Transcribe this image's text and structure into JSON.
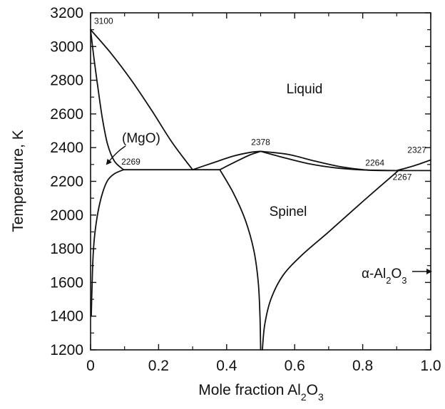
{
  "chart_data": {
    "type": "phase-diagram",
    "title": "",
    "xlabel": {
      "prefix": "Mole fraction Al",
      "sub": "2",
      "suffix": "O",
      "sub2": "3"
    },
    "ylabel": "Temperature, K",
    "xlim": [
      0,
      1.0
    ],
    "ylim": [
      1200,
      3200
    ],
    "xticks": [
      0,
      0.2,
      0.4,
      0.6,
      0.8,
      1.0
    ],
    "xtick_labels": [
      "0",
      "0.2",
      "0.4",
      "0.6",
      "0.8",
      "1.0"
    ],
    "yticks": [
      1200,
      1400,
      1600,
      1800,
      2000,
      2200,
      2400,
      2600,
      2800,
      3000,
      3200
    ],
    "ytick_labels": [
      "1200",
      "1400",
      "1600",
      "1800",
      "2000",
      "2200",
      "2400",
      "2600",
      "2800",
      "3000",
      "3200"
    ],
    "regions": {
      "liquid": "Liquid",
      "spinel": "Spinel",
      "mgo": "(MgO)",
      "alumina": {
        "prefix": "α-Al",
        "sub": "2",
        "suffix": "O",
        "sub2": "3"
      }
    },
    "points": {
      "mgo_melt": {
        "label": "3100",
        "x": 0.0,
        "y": 3100
      },
      "eutectic_mgo": {
        "label": "2269",
        "x": 0.3,
        "y": 2269
      },
      "spinel_melt": {
        "label": "2378",
        "x": 0.5,
        "y": 2378
      },
      "eutectic_al": {
        "label": "2264",
        "x": 0.9,
        "y": 2264
      },
      "al2o3_melt": {
        "label": "2327",
        "x": 1.0,
        "y": 2327
      },
      "al_solvus_top": {
        "label": "2267",
        "x": 0.905,
        "y": 2267
      }
    },
    "curves": [
      {
        "name": "liquidus-mgo",
        "points": [
          [
            0.0,
            3100
          ],
          [
            0.06,
            2960
          ],
          [
            0.12,
            2800
          ],
          [
            0.18,
            2620
          ],
          [
            0.24,
            2430
          ],
          [
            0.3,
            2269
          ]
        ]
      },
      {
        "name": "solidus-mgo",
        "points": [
          [
            0.0,
            3100
          ],
          [
            0.01,
            2930
          ],
          [
            0.022,
            2750
          ],
          [
            0.035,
            2570
          ],
          [
            0.05,
            2420
          ],
          [
            0.07,
            2320
          ],
          [
            0.097,
            2269
          ]
        ]
      },
      {
        "name": "solvus-mgo",
        "points": [
          [
            0.097,
            2269
          ],
          [
            0.07,
            2245
          ],
          [
            0.05,
            2205
          ],
          [
            0.035,
            2130
          ],
          [
            0.022,
            2020
          ],
          [
            0.012,
            1880
          ],
          [
            0.007,
            1740
          ],
          [
            0.004,
            1550
          ],
          [
            0.002,
            1400
          ]
        ]
      },
      {
        "name": "eutectic-line-mgo",
        "points": [
          [
            0.097,
            2269
          ],
          [
            0.38,
            2269
          ]
        ]
      },
      {
        "name": "liquidus-spinel-left",
        "points": [
          [
            0.3,
            2269
          ],
          [
            0.36,
            2310
          ],
          [
            0.42,
            2350
          ],
          [
            0.47,
            2372
          ],
          [
            0.5,
            2378
          ]
        ]
      },
      {
        "name": "solidus-spinel-left",
        "points": [
          [
            0.38,
            2269
          ],
          [
            0.43,
            2320
          ],
          [
            0.47,
            2358
          ],
          [
            0.5,
            2378
          ]
        ]
      },
      {
        "name": "liquidus-spinel-right",
        "points": [
          [
            0.5,
            2378
          ],
          [
            0.58,
            2360
          ],
          [
            0.66,
            2320
          ],
          [
            0.74,
            2285
          ],
          [
            0.82,
            2266
          ],
          [
            0.9,
            2264
          ]
        ]
      },
      {
        "name": "solidus-spinel-right",
        "points": [
          [
            0.5,
            2378
          ],
          [
            0.56,
            2345
          ],
          [
            0.64,
            2305
          ],
          [
            0.72,
            2280
          ],
          [
            0.8,
            2268
          ],
          [
            0.905,
            2264
          ]
        ]
      },
      {
        "name": "solvus-spinel-left",
        "points": [
          [
            0.38,
            2269
          ],
          [
            0.42,
            2130
          ],
          [
            0.455,
            1970
          ],
          [
            0.48,
            1790
          ],
          [
            0.493,
            1600
          ],
          [
            0.498,
            1400
          ],
          [
            0.5,
            1200
          ]
        ]
      },
      {
        "name": "solvus-spinel-right",
        "points": [
          [
            0.905,
            2264
          ],
          [
            0.8,
            2080
          ],
          [
            0.7,
            1900
          ],
          [
            0.62,
            1760
          ],
          [
            0.565,
            1640
          ],
          [
            0.53,
            1500
          ],
          [
            0.512,
            1350
          ],
          [
            0.505,
            1200
          ]
        ]
      },
      {
        "name": "liquidus-al2o3",
        "points": [
          [
            0.9,
            2264
          ],
          [
            0.95,
            2292
          ],
          [
            1.0,
            2327
          ]
        ]
      },
      {
        "name": "eutectic-line-al",
        "points": [
          [
            0.905,
            2264
          ],
          [
            1.0,
            2264
          ]
        ]
      }
    ]
  }
}
